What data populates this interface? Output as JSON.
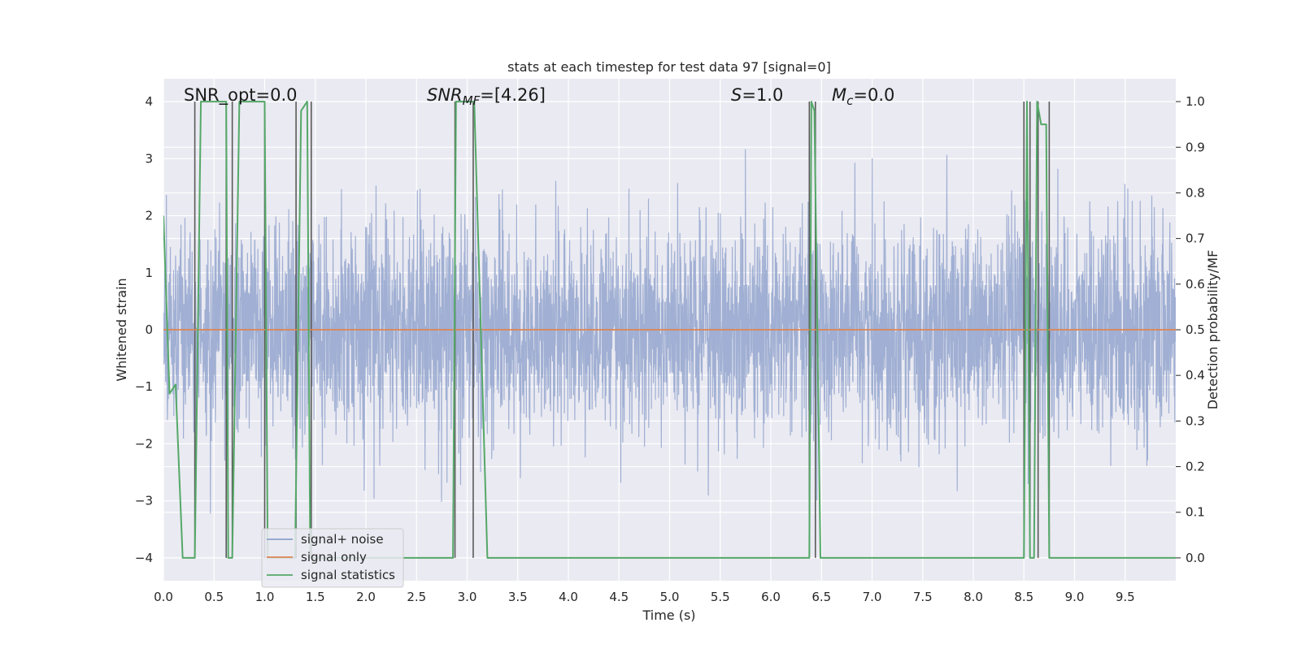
{
  "chart_data": {
    "type": "line",
    "title": "stats at each timestep for test data 97 [signal=0]",
    "xlabel": "Time (s)",
    "ylabel": "Whitened strain",
    "ylabel_right": "Detection probability/MF",
    "xlim": [
      0,
      10
    ],
    "ylim": [
      -4.4,
      4.4
    ],
    "ylim_right": [
      -0.05,
      1.05
    ],
    "xticks": [
      0.0,
      0.5,
      1.0,
      1.5,
      2.0,
      2.5,
      3.0,
      3.5,
      4.0,
      4.5,
      5.0,
      5.5,
      6.0,
      6.5,
      7.0,
      7.5,
      8.0,
      8.5,
      9.0,
      9.5
    ],
    "xtick_labels": [
      "0.0",
      "0.5",
      "1.0",
      "1.5",
      "2.0",
      "2.5",
      "3.0",
      "3.5",
      "4.0",
      "4.5",
      "5.0",
      "5.5",
      "6.0",
      "6.5",
      "7.0",
      "7.5",
      "8.0",
      "8.5",
      "9.0",
      "9.5"
    ],
    "yticks": [
      -4,
      -3,
      -2,
      -1,
      0,
      1,
      2,
      3,
      4
    ],
    "ytick_labels": [
      "−4",
      "−3",
      "−2",
      "−1",
      "0",
      "1",
      "2",
      "3",
      "4"
    ],
    "yticks_right": [
      0.0,
      0.1,
      0.2,
      0.3,
      0.4,
      0.5,
      0.6,
      0.7,
      0.8,
      0.9,
      1.0
    ],
    "ytick_right_labels": [
      "0.0",
      "0.1",
      "0.2",
      "0.3",
      "0.4",
      "0.5",
      "0.6",
      "0.7",
      "0.8",
      "0.9",
      "1.0"
    ],
    "grid": true,
    "legend_placement": "lower-left",
    "annotations": {
      "snr_opt": "SNR_opt=0.0",
      "snr_mf_prefix": "SNR",
      "snr_mf_sub": "MF",
      "snr_mf_value": "=[4.26]",
      "s_prefix": "S",
      "s_value": "=1.0",
      "mc_prefix": "M",
      "mc_sub": "c",
      "mc_value": "=0.0"
    },
    "series": [
      {
        "name": "signal+ noise",
        "color": "#8da0cb",
        "axis": "left",
        "style": "noise",
        "noise_sigma": 0.9,
        "samples": 4096,
        "envelope_peak": 3.8
      },
      {
        "name": "signal only",
        "color": "#dd8452",
        "axis": "left",
        "x": [
          0,
          10
        ],
        "y": [
          0,
          0
        ]
      },
      {
        "name": "signal statistics",
        "color": "#55a868",
        "axis": "right",
        "x": [
          0.0,
          0.06,
          0.12,
          0.19,
          0.31,
          0.37,
          0.6,
          0.62,
          0.64,
          0.68,
          0.75,
          0.78,
          1.0,
          1.03,
          1.09,
          1.3,
          1.36,
          1.42,
          1.45,
          1.5,
          2.86,
          2.89,
          2.95,
          3.07,
          3.2,
          6.38,
          6.4,
          6.43,
          6.49,
          6.51,
          8.5,
          8.53,
          8.56,
          8.6,
          8.63,
          8.67,
          8.72,
          8.75,
          8.78,
          8.85,
          10.0
        ],
        "y": [
          0.75,
          0.36,
          0.38,
          0.0,
          0.0,
          1.0,
          1.0,
          1.0,
          0.0,
          0.0,
          1.0,
          1.0,
          1.0,
          0.0,
          0.0,
          0.0,
          0.98,
          1.0,
          0.0,
          0.0,
          0.0,
          1.0,
          1.0,
          1.0,
          0.0,
          0.0,
          1.0,
          0.98,
          0.0,
          0.0,
          0.0,
          1.0,
          0.0,
          0.0,
          1.0,
          0.95,
          0.95,
          0.0,
          0.0,
          0.0,
          0.0
        ]
      }
    ],
    "vertical_lines": {
      "color": "#5a5a5a",
      "x": [
        0.31,
        0.62,
        0.68,
        1.0,
        1.31,
        1.46,
        2.88,
        3.06,
        6.38,
        6.44,
        8.5,
        8.56,
        8.64,
        8.75
      ]
    }
  }
}
